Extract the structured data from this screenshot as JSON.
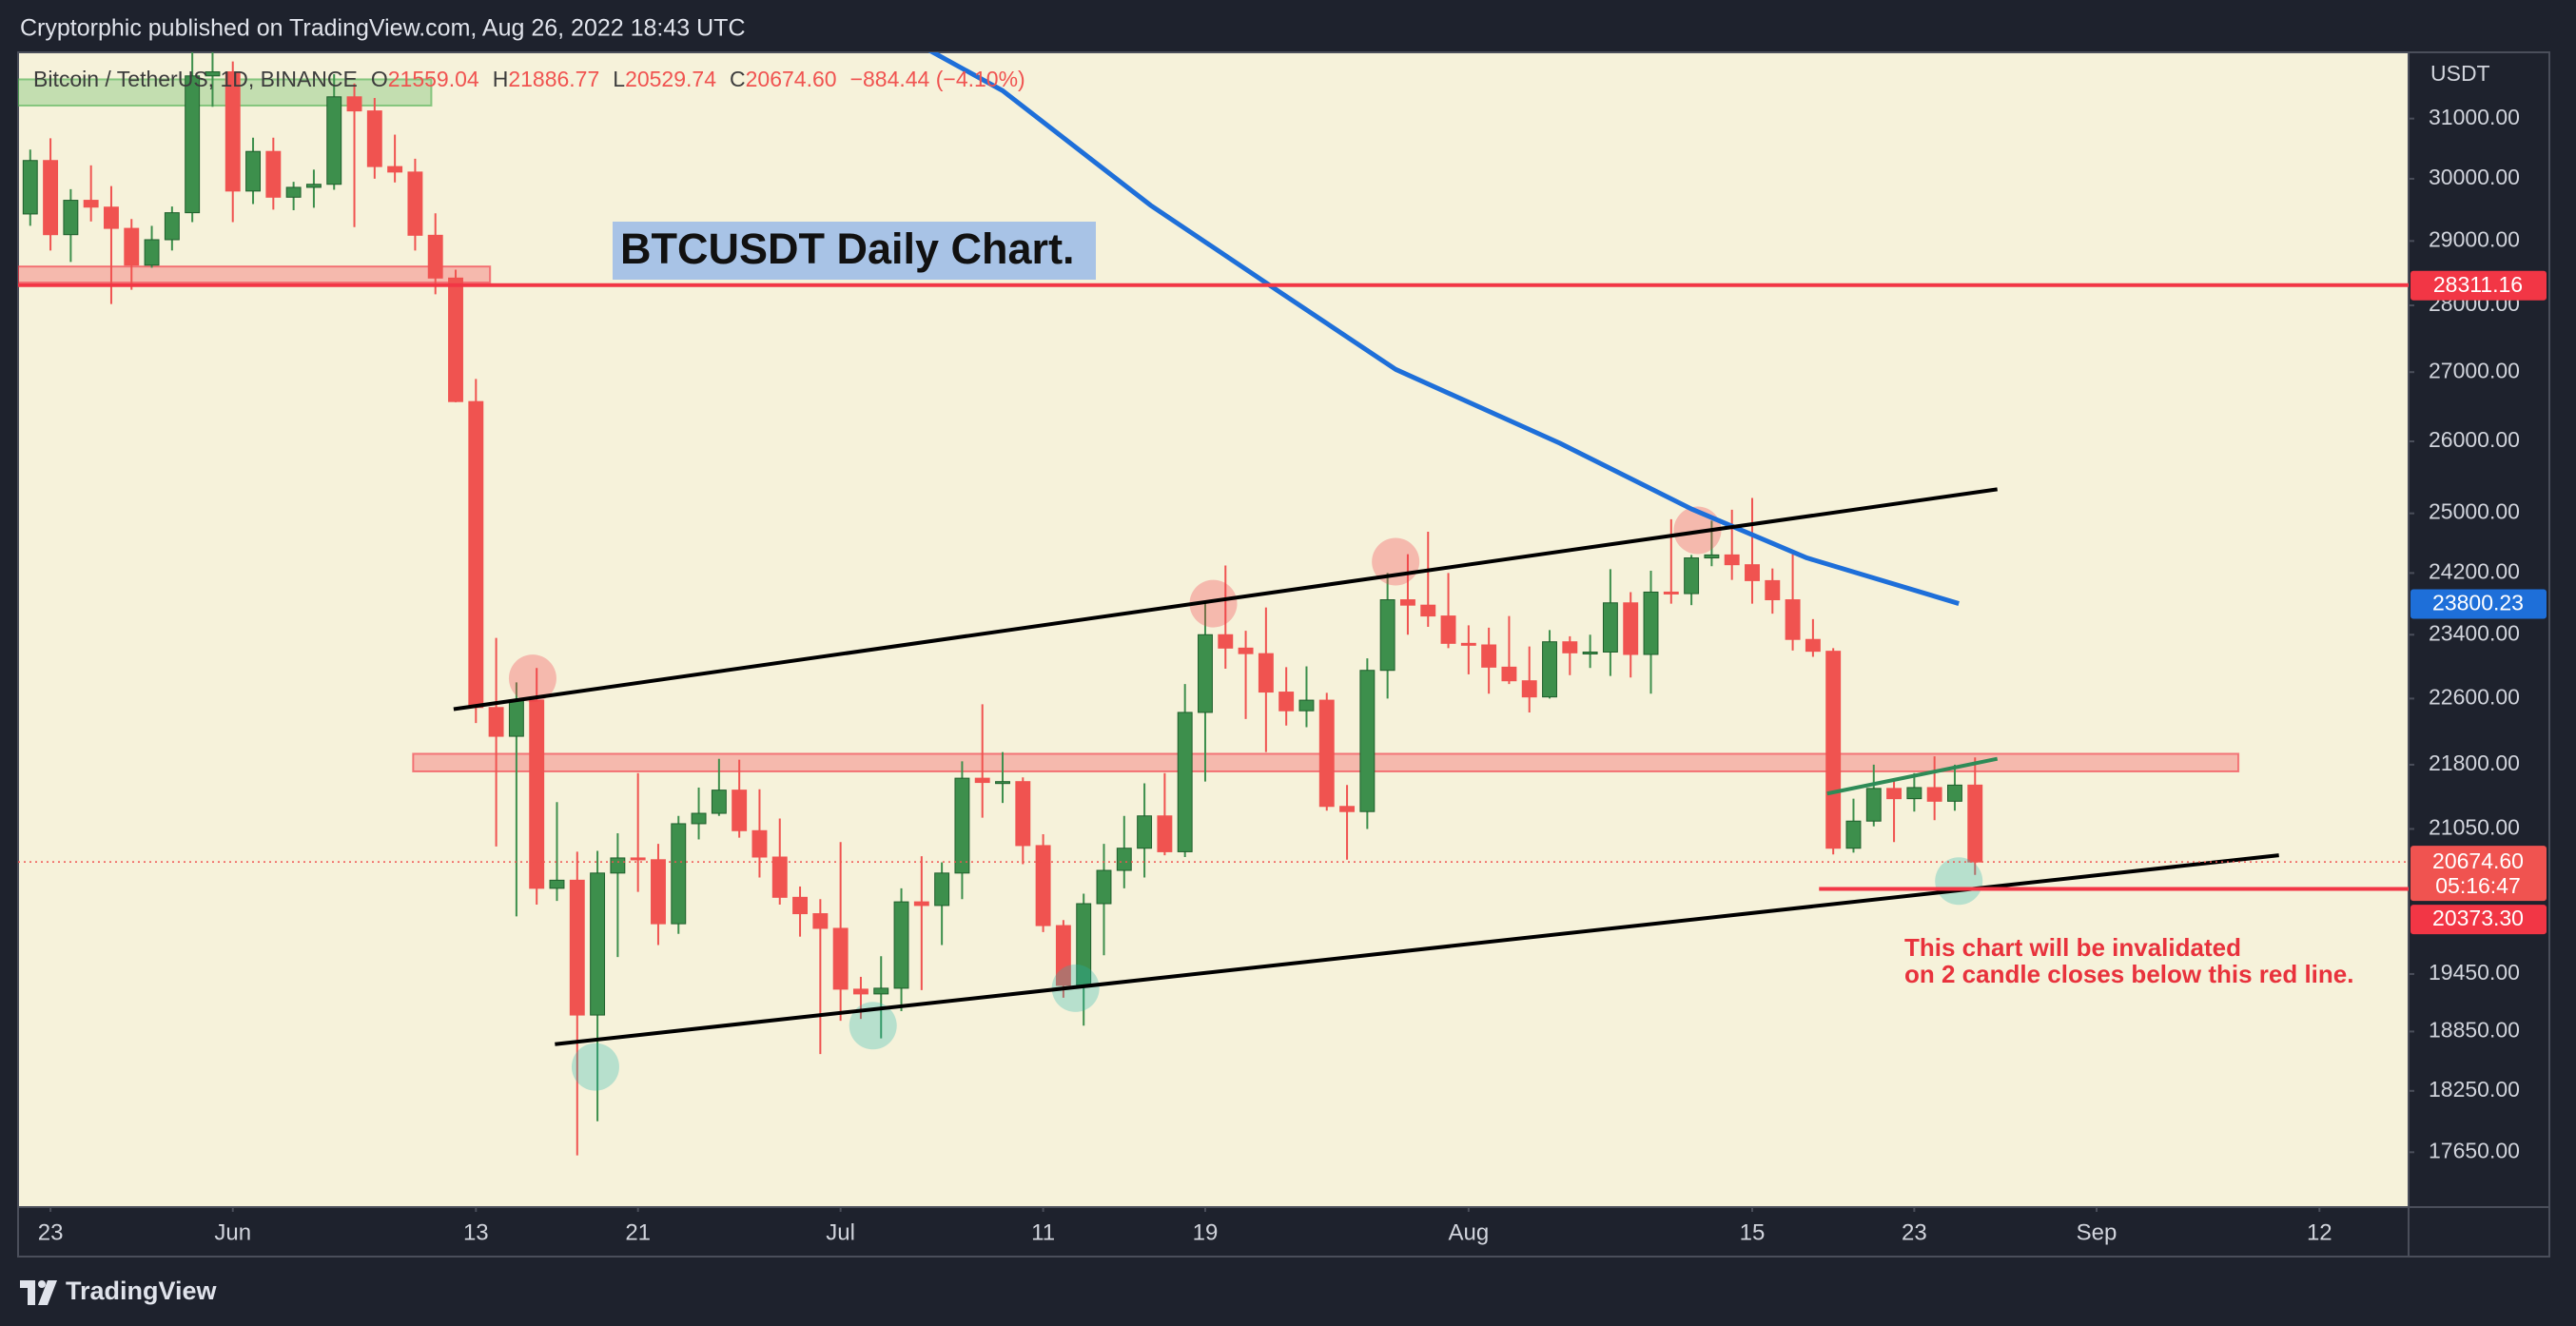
{
  "header": {
    "publisher": "Cryptorphic published on TradingView.com, Aug 26, 2022 18:43 UTC"
  },
  "chart_data": {
    "type": "candlestick",
    "title": "BTCUSDT Daily Chart.",
    "symbol": "Bitcoin / TetherUS, 1D, BINANCE",
    "ohlc_legend": [
      {
        "key": "O",
        "value": "21559.04"
      },
      {
        "key": "H",
        "value": "21886.77"
      },
      {
        "key": "L",
        "value": "20529.74"
      },
      {
        "key": "C",
        "value": "20674.60"
      }
    ],
    "change": "−884.44 (−4.10%)",
    "y_axis_label": "USDT",
    "colors": {
      "up": "#3d8f4c",
      "down": "#f05350"
    },
    "x": [
      0,
      1,
      2,
      3,
      4,
      5,
      6,
      7,
      8,
      9,
      10,
      11,
      12,
      13,
      14,
      15,
      16,
      17,
      18,
      19,
      20,
      21,
      22,
      23,
      24,
      25,
      26,
      27,
      28,
      29,
      30,
      31,
      32,
      33,
      34,
      35,
      36,
      37,
      38,
      39,
      40,
      41,
      42,
      43,
      44,
      45,
      46,
      47,
      48,
      49,
      50,
      51,
      52,
      53,
      54,
      55,
      56,
      57,
      58,
      59,
      60,
      61,
      62,
      63,
      64,
      65,
      66,
      67,
      68,
      69,
      70,
      71,
      72,
      73,
      74,
      75,
      76,
      77,
      78,
      79,
      80,
      81,
      82,
      83,
      84,
      85,
      86,
      87,
      88,
      89,
      90,
      91,
      92,
      93,
      94,
      95,
      96
    ],
    "open": [
      29430,
      30300,
      29100,
      29650,
      29540,
      29200,
      28620,
      29020,
      29450,
      31730,
      31800,
      29800,
      30450,
      29700,
      29860,
      29910,
      31370,
      31130,
      30200,
      30110,
      29090,
      28420,
      26570,
      22490,
      22140,
      22580,
      20380,
      20470,
      19020,
      20550,
      20720,
      20700,
      19990,
      21110,
      21230,
      21500,
      21030,
      20730,
      20280,
      20100,
      19940,
      19290,
      19240,
      19300,
      20230,
      20190,
      20550,
      21640,
      21590,
      21600,
      20860,
      19970,
      19330,
      20210,
      20580,
      20830,
      21200,
      20790,
      22430,
      23400,
      23230,
      23160,
      22680,
      22450,
      22580,
      21310,
      21250,
      22950,
      23850,
      23780,
      23640,
      23290,
      23270,
      22990,
      22820,
      22620,
      23310,
      23170,
      23180,
      23810,
      23150,
      23950,
      23930,
      24400,
      24440,
      24310,
      24100,
      23850,
      23340,
      23190,
      20830,
      21140,
      21520,
      21400,
      21530,
      21370,
      21559.04
    ],
    "high": [
      30480,
      30670,
      29830,
      30220,
      29880,
      29350,
      29240,
      29550,
      32220,
      32400,
      31980,
      30680,
      30680,
      29950,
      30150,
      31760,
      31600,
      31350,
      30730,
      30330,
      29440,
      28550,
      26900,
      23360,
      22800,
      22980,
      21360,
      20790,
      20800,
      21000,
      21700,
      20880,
      21200,
      21530,
      21870,
      21860,
      21510,
      21170,
      20400,
      20260,
      20900,
      19420,
      19640,
      20380,
      20740,
      20670,
      21840,
      22530,
      21950,
      21650,
      20990,
      20030,
      20320,
      20880,
      21200,
      21580,
      21700,
      22780,
      23820,
      24300,
      23450,
      23750,
      22990,
      23000,
      22670,
      21560,
      23100,
      24200,
      24450,
      24750,
      24200,
      23520,
      23490,
      23640,
      23250,
      23460,
      23380,
      23400,
      24250,
      23950,
      24230,
      24920,
      24440,
      24900,
      25050,
      25210,
      24260,
      24450,
      23600,
      23230,
      21400,
      21800,
      21620,
      21700,
      21900,
      21800,
      21886.77
    ],
    "low": [
      29240,
      28850,
      28670,
      29310,
      28020,
      28240,
      28580,
      28850,
      29300,
      31200,
      29300,
      29590,
      29500,
      29490,
      29530,
      29820,
      29220,
      30000,
      29940,
      28850,
      28170,
      26560,
      22300,
      20850,
      20070,
      20200,
      20240,
      17620,
      17950,
      19630,
      20340,
      19760,
      19880,
      20930,
      21200,
      20950,
      20500,
      20200,
      19850,
      18620,
      18960,
      18980,
      18780,
      19060,
      19280,
      19760,
      20260,
      21180,
      21350,
      20650,
      19900,
      19200,
      18910,
      19650,
      20380,
      20500,
      20750,
      20730,
      21600,
      22970,
      22350,
      21950,
      22270,
      22250,
      21260,
      20700,
      21050,
      22600,
      23400,
      23500,
      23230,
      22900,
      22660,
      22780,
      22430,
      22600,
      22890,
      22980,
      22880,
      22860,
      22660,
      23800,
      23780,
      24290,
      24110,
      23800,
      23670,
      23200,
      23120,
      20760,
      20780,
      21080,
      20900,
      21250,
      21150,
      21260,
      20529.74
    ],
    "close": [
      30300,
      29100,
      29650,
      29540,
      29200,
      28620,
      29020,
      29450,
      31730,
      31800,
      29800,
      30450,
      29700,
      29860,
      29910,
      31370,
      31130,
      30200,
      30110,
      29090,
      28420,
      26570,
      22490,
      22140,
      22580,
      20380,
      20470,
      19020,
      20550,
      20720,
      20700,
      19990,
      21110,
      21230,
      21500,
      21030,
      20730,
      20280,
      20100,
      19940,
      19290,
      19240,
      19300,
      20230,
      20190,
      20550,
      21640,
      21590,
      21600,
      20860,
      19970,
      19330,
      20210,
      20580,
      20830,
      21200,
      20790,
      22430,
      23400,
      23230,
      23160,
      22680,
      22450,
      22580,
      21310,
      21250,
      22950,
      23850,
      23780,
      23640,
      23290,
      23270,
      22990,
      22820,
      22620,
      23310,
      23170,
      23180,
      23810,
      23150,
      23950,
      23930,
      24400,
      24440,
      24310,
      24100,
      23850,
      23340,
      23190,
      20830,
      21140,
      21520,
      21400,
      21530,
      21370,
      21559.04,
      20674.6
    ],
    "xlim": [
      -0.6,
      117.4
    ],
    "xticks": [
      {
        "value": 1,
        "label": "23"
      },
      {
        "value": 10,
        "label": "Jun"
      },
      {
        "value": 22,
        "label": "13"
      },
      {
        "value": 30,
        "label": "21"
      },
      {
        "value": 40,
        "label": "Jul"
      },
      {
        "value": 50,
        "label": "11"
      },
      {
        "value": 58,
        "label": "19"
      },
      {
        "value": 71,
        "label": "Aug"
      },
      {
        "value": 85,
        "label": "15"
      },
      {
        "value": 93,
        "label": "23"
      },
      {
        "value": 102,
        "label": "Sep"
      },
      {
        "value": 113,
        "label": "12"
      }
    ],
    "ylim": [
      17130,
      32140
    ],
    "log_scale": true,
    "yticks": [
      {
        "value": 31000,
        "label": "31000.00"
      },
      {
        "value": 30000,
        "label": "30000.00"
      },
      {
        "value": 29000,
        "label": "29000.00"
      },
      {
        "value": 28000,
        "label": "28000.00"
      },
      {
        "value": 27000,
        "label": "27000.00"
      },
      {
        "value": 26000,
        "label": "26000.00"
      },
      {
        "value": 25000,
        "label": "25000.00"
      },
      {
        "value": 24200,
        "label": "24200.00"
      },
      {
        "value": 23400,
        "label": "23400.00"
      },
      {
        "value": 22600,
        "label": "22600.00"
      },
      {
        "value": 21800,
        "label": "21800.00"
      },
      {
        "value": 21050,
        "label": "21050.00"
      },
      {
        "value": 19450,
        "label": "19450.00"
      },
      {
        "value": 18850,
        "label": "18850.00"
      },
      {
        "value": 18250,
        "label": "18250.00"
      },
      {
        "value": 17650,
        "label": "17650.00"
      }
    ],
    "moving_average": {
      "color": "#1e6fd9",
      "x": [
        44,
        48,
        55.3,
        61.7,
        67.4,
        75.5,
        82,
        87.7,
        95.2
      ],
      "values": [
        32250,
        31475,
        29570,
        28200,
        27040,
        25975,
        25060,
        24400,
        23800.23
      ]
    },
    "horizontal_lines": [
      {
        "value": 28311.16,
        "x_start": -0.6,
        "color": "#f23645"
      },
      {
        "value": 20373.3,
        "label": "20373.30",
        "x_start": 88.3,
        "color": "#f23645"
      }
    ],
    "last_price": {
      "value": 20674.6,
      "label": "20674.60",
      "countdown": "05:16:47",
      "color": "#f05350"
    },
    "trend_lines": [
      {
        "x": [
          20.9,
          97.1
        ],
        "values": [
          22470,
          25330
        ],
        "color": "#000000"
      },
      {
        "x": [
          25.9,
          111
        ],
        "values": [
          18720,
          20750
        ],
        "color": "#000000"
      },
      {
        "x": [
          88.7,
          97.1
        ],
        "values": [
          21460,
          21870
        ],
        "color": "#2e8b57"
      }
    ],
    "zones": [
      {
        "x": [
          -0.6,
          19.8
        ],
        "values": [
          31670,
          31220
        ],
        "color": "#4caf50"
      },
      {
        "x": [
          -0.6,
          22.7
        ],
        "values": [
          28600,
          28350
        ],
        "color": "#f23645"
      },
      {
        "x": [
          18.9,
          109
        ],
        "values": [
          21930,
          21720
        ],
        "color": "#f23645"
      }
    ],
    "highlights": [
      {
        "x": 24.8,
        "value": 22850,
        "color": "#f23645"
      },
      {
        "x": 58.4,
        "value": 23800,
        "color": "#f23645"
      },
      {
        "x": 67.4,
        "value": 24350,
        "color": "#f23645"
      },
      {
        "x": 82.3,
        "value": 24770,
        "color": "#f23645"
      },
      {
        "x": 27.9,
        "value": 18490,
        "color": "#26b6b0"
      },
      {
        "x": 41.6,
        "value": 18910,
        "color": "#26b6b0"
      },
      {
        "x": 51.6,
        "value": 19300,
        "color": "#26b6b0"
      },
      {
        "x": 95.2,
        "value": 20460,
        "color": "#26b6b0"
      }
    ],
    "annotation": [
      "This chart will be invalidated",
      "on 2 candle closes below this red line."
    ]
  },
  "footer": {
    "brand": "TradingView"
  }
}
